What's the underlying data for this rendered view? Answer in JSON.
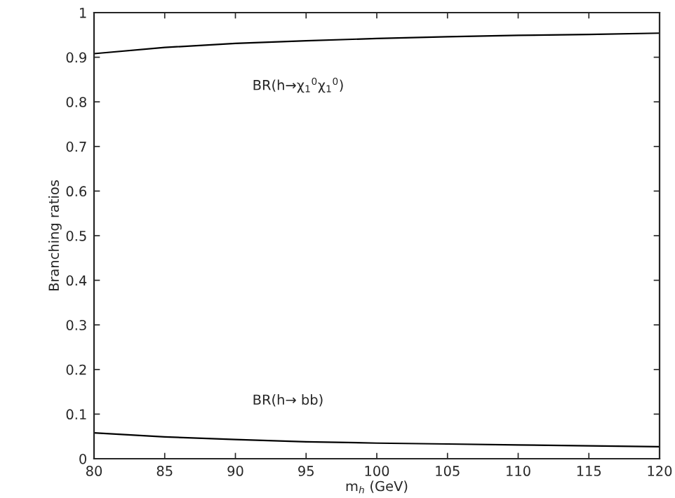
{
  "chart_data": {
    "type": "line",
    "xlabel": "m$_{h}$ (GeV)",
    "ylabel": "Branching ratios",
    "x": [
      80,
      85,
      90,
      95,
      100,
      105,
      110,
      115,
      120
    ],
    "series": [
      {
        "color": "#000000",
        "values": [
          0.908,
          0.922,
          0.931,
          0.937,
          0.942,
          0.946,
          0.949,
          0.951,
          0.954
        ]
      },
      {
        "color": "#000000",
        "values": [
          0.058,
          0.049,
          0.043,
          0.038,
          0.035,
          0.033,
          0.031,
          0.029,
          0.027
        ]
      }
    ],
    "annotations": [
      "BR(h→χ$_{1}$$^{0}$χ$_{1}$$^{0}$)",
      "BR(h→ bb)"
    ],
    "xlim": [
      80,
      120
    ],
    "ylim": [
      0,
      1
    ],
    "xticks": [
      80,
      85,
      90,
      95,
      100,
      105,
      110,
      115,
      120
    ],
    "yticks": [
      0,
      0.1,
      0.2,
      0.3,
      0.4,
      0.5,
      0.6,
      0.7,
      0.8,
      0.9,
      1
    ],
    "grid": false,
    "legend": false,
    "marker": "none",
    "line_style": "solid"
  }
}
